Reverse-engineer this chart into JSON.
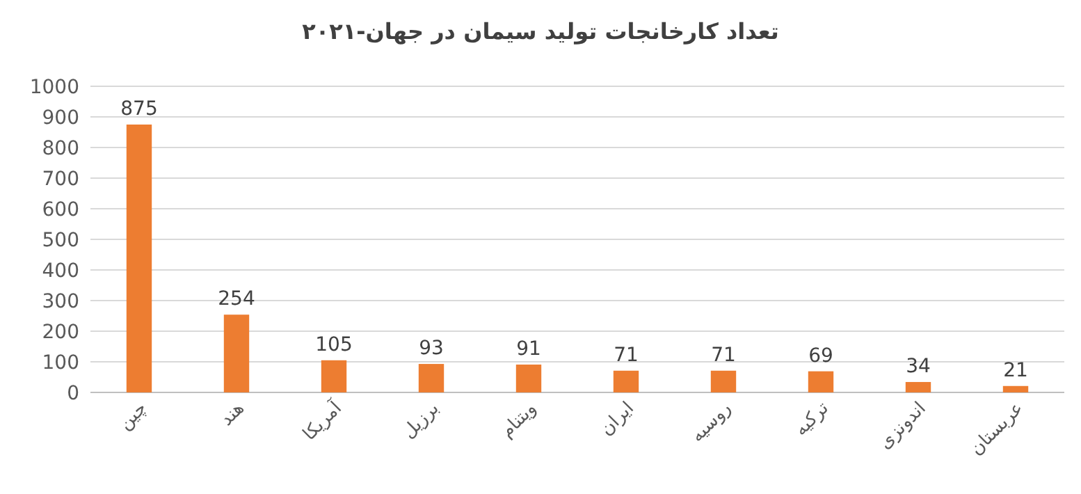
{
  "chart_data": {
    "type": "bar",
    "title": "تعداد کارخانجات تولید سیمان در جهان-۲۰۲۱",
    "categories": [
      "چین",
      "هند",
      "آمریکا",
      "برزیل",
      "ویتنام",
      "ایران",
      "روسیه",
      "ترکیه",
      "اندونزی",
      "عربستان"
    ],
    "values": [
      875,
      254,
      105,
      93,
      91,
      71,
      71,
      69,
      34,
      21
    ],
    "color": "#ed7d31",
    "ylim": [
      0,
      1000
    ],
    "yticks": [
      0,
      100,
      200,
      300,
      400,
      500,
      600,
      700,
      800,
      900,
      1000
    ],
    "grid": "y",
    "data_labels": true
  }
}
